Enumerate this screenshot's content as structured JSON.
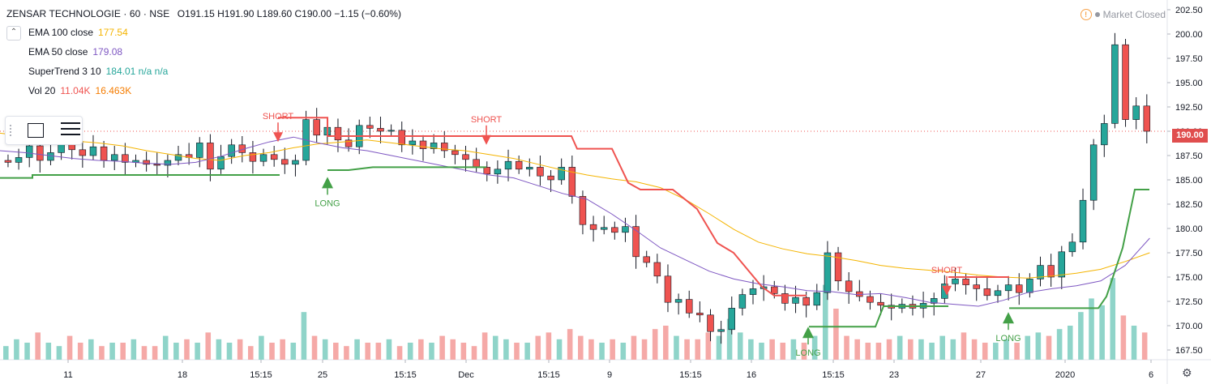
{
  "header": {
    "symbol": "ZENSAR TECHNOLOGIE · 60 · NSE",
    "ohlc": "O191.15  H191.90  L189.60  C190.00  −1.15 (−0.60%)"
  },
  "market_status": "Market Closed",
  "collapse_icon": "chevron-up-icon",
  "indicators": [
    {
      "label": "EMA 100 close",
      "value": "177.54",
      "color": "#f4b400"
    },
    {
      "label": "EMA 50 close",
      "value": "179.08",
      "color": "#7e57c2"
    },
    {
      "label": "SuperTrend 3 10",
      "value": "184.01  n/a  n/a",
      "color": "#26a69a"
    },
    {
      "label": "Vol 20",
      "value": "11.04K",
      "value2": "16.463K",
      "color": "#ef5350",
      "color2": "#f57c00"
    }
  ],
  "current_price_label": "190.00",
  "colors": {
    "up": "#26a69a",
    "down": "#ef5350",
    "ema100": "#f4b400",
    "ema50": "#7e57c2",
    "st_up": "#43a047",
    "st_down": "#ef5350"
  },
  "chart_data": {
    "type": "candlestick",
    "y_ticks": [
      "202.50",
      "200.00",
      "197.50",
      "195.00",
      "192.50",
      "190.00",
      "187.50",
      "185.00",
      "182.50",
      "180.00",
      "177.50",
      "175.00",
      "172.50",
      "170.00",
      "167.50"
    ],
    "ylim": [
      166.5,
      203.5
    ],
    "x_ticks": [
      "11",
      "18",
      "15:15",
      "25",
      "15:15",
      "Dec",
      "15:15",
      "9",
      "15:15",
      "16",
      "15:15",
      "23",
      "27",
      "2020",
      "6"
    ],
    "close_path": [
      186.8,
      187.3,
      188.5,
      187.0,
      187.8,
      189.3,
      188.1,
      187.5,
      188.4,
      187.0,
      187.6,
      186.8,
      187.0,
      186.6,
      186.5,
      187.0,
      187.6,
      187.3,
      188.8,
      186.1,
      187.4,
      188.6,
      187.8,
      186.9,
      187.6,
      187.1,
      186.6,
      187.0,
      191.2,
      189.6,
      190.4,
      189.1,
      188.4,
      190.6,
      190.3,
      190.0,
      190.1,
      188.6,
      189.0,
      188.2,
      188.8,
      188.0,
      187.6,
      187.1,
      186.3,
      185.6,
      186.1,
      186.9,
      186.1,
      186.3,
      185.4,
      185.0,
      186.3,
      183.3,
      180.4,
      179.9,
      180.1,
      179.6,
      180.2,
      177.1,
      176.5,
      175.1,
      172.4,
      172.7,
      171.3,
      171.1,
      169.4,
      169.6,
      171.8,
      173.2,
      173.8,
      174.0,
      173.3,
      172.3,
      172.9,
      172.1,
      173.4,
      177.5,
      174.6,
      173.5,
      173.0,
      172.4,
      172.1,
      171.8,
      172.2,
      171.8,
      172.3,
      172.8,
      174.3,
      174.8,
      174.2,
      173.8,
      173.1,
      173.6,
      174.2,
      173.4,
      174.8,
      176.2,
      175.0,
      177.6,
      178.6,
      182.9,
      188.6,
      190.8,
      198.9,
      191.2,
      192.6,
      190.0
    ],
    "volume_path": [
      4,
      6,
      5,
      8,
      5,
      4,
      7,
      5,
      6,
      4,
      5,
      5,
      6,
      4,
      4,
      7,
      5,
      6,
      5,
      8,
      6,
      5,
      6,
      4,
      7,
      5,
      6,
      5,
      14,
      7,
      6,
      5,
      4,
      6,
      5,
      5,
      6,
      4,
      5,
      6,
      5,
      7,
      6,
      5,
      4,
      8,
      7,
      6,
      5,
      5,
      7,
      8,
      6,
      9,
      7,
      6,
      5,
      6,
      5,
      7,
      6,
      9,
      10,
      7,
      6,
      6,
      8,
      7,
      12,
      8,
      6,
      5,
      6,
      5,
      6,
      5,
      7,
      22,
      15,
      7,
      6,
      5,
      5,
      6,
      7,
      6,
      6,
      5,
      7,
      6,
      8,
      6,
      5,
      5,
      6,
      5,
      7,
      8,
      7,
      9,
      10,
      14,
      18,
      16,
      24,
      13,
      10,
      8
    ],
    "ema100": [
      189.8,
      189.5,
      189.2,
      189.0,
      188.8,
      188.5,
      188.0,
      187.6,
      187.2,
      187.0,
      187.5,
      187.8,
      188.3,
      188.7,
      188.9,
      189.1,
      188.8,
      188.5,
      188.2,
      188.0,
      187.6,
      187.2,
      186.6,
      186.0,
      185.5,
      185.1,
      184.8,
      184.2,
      183.0,
      181.5,
      179.9,
      178.6,
      177.9,
      177.4,
      177.1,
      176.7,
      176.2,
      175.9,
      175.7,
      175.5,
      175.2,
      175.0,
      174.9,
      175.1,
      175.4,
      175.8,
      176.6,
      177.5
    ],
    "ema50": [
      188.0,
      187.8,
      187.5,
      187.2,
      187.0,
      186.9,
      186.7,
      186.6,
      186.8,
      187.4,
      188.2,
      188.9,
      189.4,
      188.8,
      188.3,
      188.0,
      187.5,
      187.0,
      186.5,
      186.0,
      185.5,
      185.2,
      184.4,
      183.6,
      183.0,
      181.5,
      179.8,
      178.0,
      176.8,
      175.6,
      174.8,
      174.3,
      174.0,
      173.6,
      173.5,
      173.2,
      173.3,
      172.9,
      172.4,
      172.2,
      172.0,
      172.6,
      173.4,
      173.8,
      174.1,
      174.6,
      176.2,
      179.0
    ],
    "supertrend": [
      {
        "trend": "up",
        "points": [
          [
            0,
            185.2
          ],
          [
            40,
            185.2
          ],
          [
            40,
            185.5
          ],
          [
            345,
            185.5
          ]
        ]
      },
      {
        "trend": "down",
        "points": [
          [
            343,
            191.4
          ],
          [
            404,
            191.4
          ],
          [
            404,
            189.5
          ],
          [
            705,
            189.5
          ],
          [
            712,
            188.2
          ],
          [
            755,
            188.2
          ],
          [
            775,
            184.7
          ],
          [
            790,
            184.0
          ],
          [
            830,
            184.0
          ],
          [
            860,
            182.0
          ],
          [
            885,
            178.5
          ],
          [
            905,
            177.5
          ],
          [
            940,
            174.0
          ],
          [
            955,
            173.1
          ],
          [
            995,
            173.1
          ]
        ]
      },
      {
        "trend": "up",
        "points": [
          [
            404,
            186.0
          ],
          [
            430,
            186.0
          ],
          [
            460,
            186.3
          ],
          [
            600,
            186.3
          ]
        ]
      },
      {
        "trend": "down",
        "points": [
          [
            600,
            189.5
          ],
          [
            705,
            189.5
          ]
        ]
      },
      {
        "trend": "up",
        "points": [
          [
            998,
            169.9
          ],
          [
            1080,
            169.9
          ],
          [
            1090,
            172.0
          ],
          [
            1170,
            172.0
          ]
        ]
      },
      {
        "trend": "down",
        "points": [
          [
            1170,
            175.0
          ],
          [
            1245,
            175.0
          ]
        ]
      },
      {
        "trend": "up",
        "points": [
          [
            1245,
            171.8
          ],
          [
            1355,
            171.8
          ],
          [
            1365,
            173.0
          ],
          [
            1385,
            178.0
          ],
          [
            1400,
            184.0
          ],
          [
            1418,
            184.0
          ]
        ]
      }
    ],
    "signals": [
      {
        "type": "short",
        "label": "SHORT",
        "x": 343,
        "price": 188.9
      },
      {
        "type": "long",
        "label": "LONG",
        "x": 404,
        "price": 185.3
      },
      {
        "type": "short",
        "label": "SHORT",
        "x": 600,
        "price": 188.6
      },
      {
        "type": "short",
        "label": "SHORT",
        "x": 1168,
        "price": 173.1
      },
      {
        "type": "long",
        "label": "LONG",
        "x": 997,
        "price": 169.9
      },
      {
        "type": "long",
        "label": "LONG",
        "x": 1244,
        "price": 171.4
      }
    ]
  }
}
